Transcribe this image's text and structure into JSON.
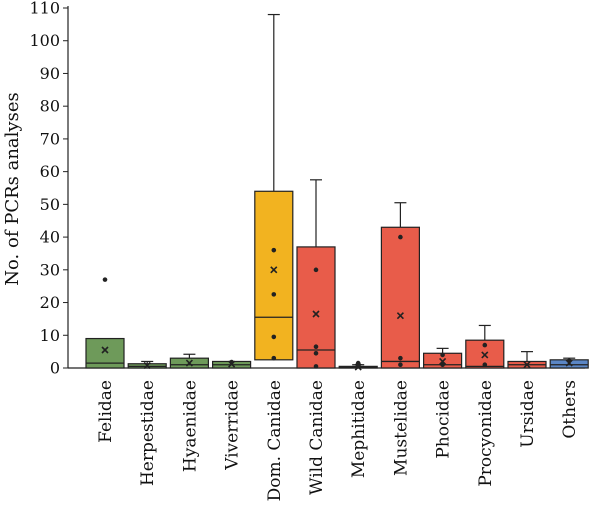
{
  "chart_data": {
    "type": "box",
    "ylabel": "No. of PCRs analyses",
    "ylim": [
      0,
      110
    ],
    "yticks": [
      0,
      10,
      20,
      30,
      40,
      50,
      60,
      70,
      80,
      90,
      100,
      110
    ],
    "grid": false,
    "legend": "none",
    "boxes": [
      {
        "category": "Felidae",
        "color": "#6e9a5a",
        "q1": 0,
        "median": 1.5,
        "q3": 9,
        "whisker_low": 0,
        "whisker_high": 9,
        "mean": 5.5,
        "points": [
          27
        ]
      },
      {
        "category": "Herpestidae",
        "color": "#6e9a5a",
        "q1": 0,
        "median": 0.5,
        "q3": 1.3,
        "whisker_low": 0,
        "whisker_high": 2,
        "mean": 0.8,
        "points": []
      },
      {
        "category": "Hyaenidae",
        "color": "#6e9a5a",
        "q1": 0,
        "median": 1,
        "q3": 3,
        "whisker_low": 0,
        "whisker_high": 4.2,
        "mean": 1.5,
        "points": []
      },
      {
        "category": "Viverridae",
        "color": "#6e9a5a",
        "q1": 0,
        "median": 1,
        "q3": 2,
        "whisker_low": 0,
        "whisker_high": 2,
        "mean": 1.2,
        "points": [
          1.8
        ]
      },
      {
        "category": "Dom. Canidae",
        "color": "#f2b320",
        "q1": 2.5,
        "median": 15.5,
        "q3": 54,
        "whisker_low": 2.5,
        "whisker_high": 108,
        "mean": 30,
        "points": [
          36,
          22.5,
          9.5,
          3
        ]
      },
      {
        "category": "Wild Canidae",
        "color": "#e85c4a",
        "q1": 0,
        "median": 5.5,
        "q3": 37,
        "whisker_low": 0,
        "whisker_high": 57.5,
        "mean": 16.5,
        "points": [
          30,
          6.5,
          4.5,
          0.5
        ]
      },
      {
        "category": "Mephitidae",
        "color": "#e85c4a",
        "q1": 0,
        "median": 0.3,
        "q3": 0.5,
        "whisker_low": 0,
        "whisker_high": 1,
        "mean": 0.3,
        "points": [
          1.5
        ]
      },
      {
        "category": "Mustelidae",
        "color": "#e85c4a",
        "q1": 0,
        "median": 2,
        "q3": 43,
        "whisker_low": 0,
        "whisker_high": 50.5,
        "mean": 16,
        "points": [
          40,
          3,
          1
        ]
      },
      {
        "category": "Phocidae",
        "color": "#e85c4a",
        "q1": 0,
        "median": 1,
        "q3": 4.5,
        "whisker_low": 0,
        "whisker_high": 6,
        "mean": 2,
        "points": [
          4,
          1
        ]
      },
      {
        "category": "Procyonidae",
        "color": "#e85c4a",
        "q1": 0,
        "median": 0.5,
        "q3": 8.5,
        "whisker_low": 0,
        "whisker_high": 13,
        "mean": 4,
        "points": [
          7,
          1
        ]
      },
      {
        "category": "Ursidae",
        "color": "#e85c4a",
        "q1": 0,
        "median": 1,
        "q3": 2,
        "whisker_low": 0,
        "whisker_high": 5,
        "mean": 1,
        "points": []
      },
      {
        "category": "Others",
        "color": "#5b86c5",
        "q1": 0,
        "median": 1,
        "q3": 2.5,
        "whisker_low": 0,
        "whisker_high": 3,
        "mean": 1.5,
        "points": [
          2.2
        ]
      }
    ]
  }
}
